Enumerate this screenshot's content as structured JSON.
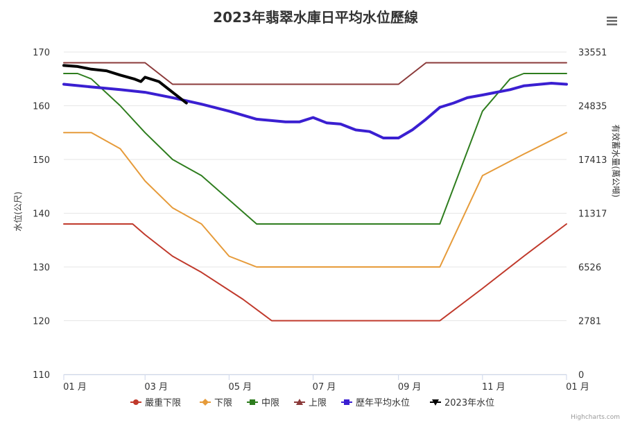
{
  "chart_data": {
    "type": "line",
    "title": "2023年翡翠水庫日平均水位歷線",
    "xlabel": "",
    "ylabel": "水位(公尺)",
    "y2label": "有效蓄水量(萬公噸)",
    "ylim": [
      110,
      170
    ],
    "y_ticks": [
      110,
      120,
      130,
      140,
      150,
      160,
      170
    ],
    "y2_ticks": [
      {
        "level": 170,
        "label": "33551"
      },
      {
        "level": 160,
        "label": "24835"
      },
      {
        "level": 150,
        "label": "17413"
      },
      {
        "level": 140,
        "label": "11317"
      },
      {
        "level": 130,
        "label": "6526"
      },
      {
        "level": 120,
        "label": "2781"
      },
      {
        "level": 110,
        "label": "0"
      }
    ],
    "x_domain": [
      "2023-01-01",
      "2024-01-01"
    ],
    "x_ticks": [
      {
        "date": "2023-01-01",
        "label": "01 月"
      },
      {
        "date": "2023-03-01",
        "label": "03 月"
      },
      {
        "date": "2023-05-01",
        "label": "05 月"
      },
      {
        "date": "2023-07-01",
        "label": "07 月"
      },
      {
        "date": "2023-09-01",
        "label": "09 月"
      },
      {
        "date": "2023-11-01",
        "label": "11 月"
      },
      {
        "date": "2024-01-01",
        "label": "01 月"
      }
    ],
    "legend_position": "bottom",
    "grid": true,
    "series": [
      {
        "name": "嚴重下限",
        "color": "#c0392b",
        "marker": "circle",
        "width": 2,
        "points": [
          [
            "2023-01-01",
            138
          ],
          [
            "2023-02-20",
            138
          ],
          [
            "2023-03-01",
            136
          ],
          [
            "2023-03-21",
            132
          ],
          [
            "2023-04-11",
            129
          ],
          [
            "2023-05-11",
            124
          ],
          [
            "2023-06-01",
            120
          ],
          [
            "2023-10-01",
            120
          ],
          [
            "2023-11-01",
            126
          ],
          [
            "2023-12-01",
            132
          ],
          [
            "2024-01-01",
            138
          ]
        ]
      },
      {
        "name": "下限",
        "color": "#e69b3a",
        "marker": "diamond",
        "width": 2,
        "points": [
          [
            "2023-01-01",
            155
          ],
          [
            "2023-01-21",
            155
          ],
          [
            "2023-02-11",
            152
          ],
          [
            "2023-03-01",
            146
          ],
          [
            "2023-03-21",
            141
          ],
          [
            "2023-04-11",
            138
          ],
          [
            "2023-05-01",
            132
          ],
          [
            "2023-05-21",
            130
          ],
          [
            "2023-10-01",
            130
          ],
          [
            "2023-11-01",
            147
          ],
          [
            "2023-12-01",
            151
          ],
          [
            "2024-01-01",
            155
          ]
        ]
      },
      {
        "name": "中限",
        "color": "#2e7d1e",
        "marker": "square",
        "width": 2,
        "points": [
          [
            "2023-01-01",
            166
          ],
          [
            "2023-01-11",
            166
          ],
          [
            "2023-01-21",
            165
          ],
          [
            "2023-02-11",
            160
          ],
          [
            "2023-03-01",
            155
          ],
          [
            "2023-03-21",
            150
          ],
          [
            "2023-04-11",
            147
          ],
          [
            "2023-05-21",
            138
          ],
          [
            "2023-10-01",
            138
          ],
          [
            "2023-11-01",
            159
          ],
          [
            "2023-11-21",
            165
          ],
          [
            "2023-12-01",
            166
          ],
          [
            "2024-01-01",
            166
          ]
        ]
      },
      {
        "name": "上限",
        "color": "#8b3a3a",
        "marker": "triangle",
        "width": 2,
        "points": [
          [
            "2023-01-01",
            168
          ],
          [
            "2023-03-01",
            168
          ],
          [
            "2023-03-21",
            164
          ],
          [
            "2023-09-01",
            164
          ],
          [
            "2023-09-21",
            168
          ],
          [
            "2024-01-01",
            168
          ]
        ]
      },
      {
        "name": "歷年平均水位",
        "color": "#3a1fd1",
        "marker": "rect",
        "width": 4,
        "points": [
          [
            "2023-01-01",
            164
          ],
          [
            "2023-01-21",
            163.5
          ],
          [
            "2023-02-11",
            163
          ],
          [
            "2023-03-01",
            162.5
          ],
          [
            "2023-03-21",
            161.5
          ],
          [
            "2023-04-11",
            160.3
          ],
          [
            "2023-05-01",
            159
          ],
          [
            "2023-05-21",
            157.5
          ],
          [
            "2023-06-11",
            157
          ],
          [
            "2023-06-21",
            157
          ],
          [
            "2023-07-01",
            157.8
          ],
          [
            "2023-07-11",
            156.8
          ],
          [
            "2023-07-21",
            156.6
          ],
          [
            "2023-08-01",
            155.5
          ],
          [
            "2023-08-11",
            155.2
          ],
          [
            "2023-08-21",
            154
          ],
          [
            "2023-09-01",
            154
          ],
          [
            "2023-09-11",
            155.5
          ],
          [
            "2023-09-21",
            157.5
          ],
          [
            "2023-10-01",
            159.7
          ],
          [
            "2023-10-11",
            160.5
          ],
          [
            "2023-10-21",
            161.5
          ],
          [
            "2023-11-01",
            162
          ],
          [
            "2023-11-11",
            162.5
          ],
          [
            "2023-11-21",
            163
          ],
          [
            "2023-12-01",
            163.7
          ],
          [
            "2023-12-21",
            164.2
          ],
          [
            "2024-01-01",
            164
          ]
        ]
      },
      {
        "name": "2023年水位",
        "color": "#000000",
        "marker": "triangle-down",
        "width": 4,
        "points": [
          [
            "2023-01-01",
            167.5
          ],
          [
            "2023-01-11",
            167.3
          ],
          [
            "2023-01-21",
            166.8
          ],
          [
            "2023-02-01",
            166.5
          ],
          [
            "2023-02-11",
            165.7
          ],
          [
            "2023-02-21",
            165
          ],
          [
            "2023-02-26",
            164.5
          ],
          [
            "2023-03-01",
            165.3
          ],
          [
            "2023-03-11",
            164.5
          ],
          [
            "2023-03-21",
            162.5
          ],
          [
            "2023-03-31",
            160.5
          ]
        ]
      }
    ]
  },
  "credits": "Highcharts.com",
  "menu_icon": "hamburger-menu-icon"
}
